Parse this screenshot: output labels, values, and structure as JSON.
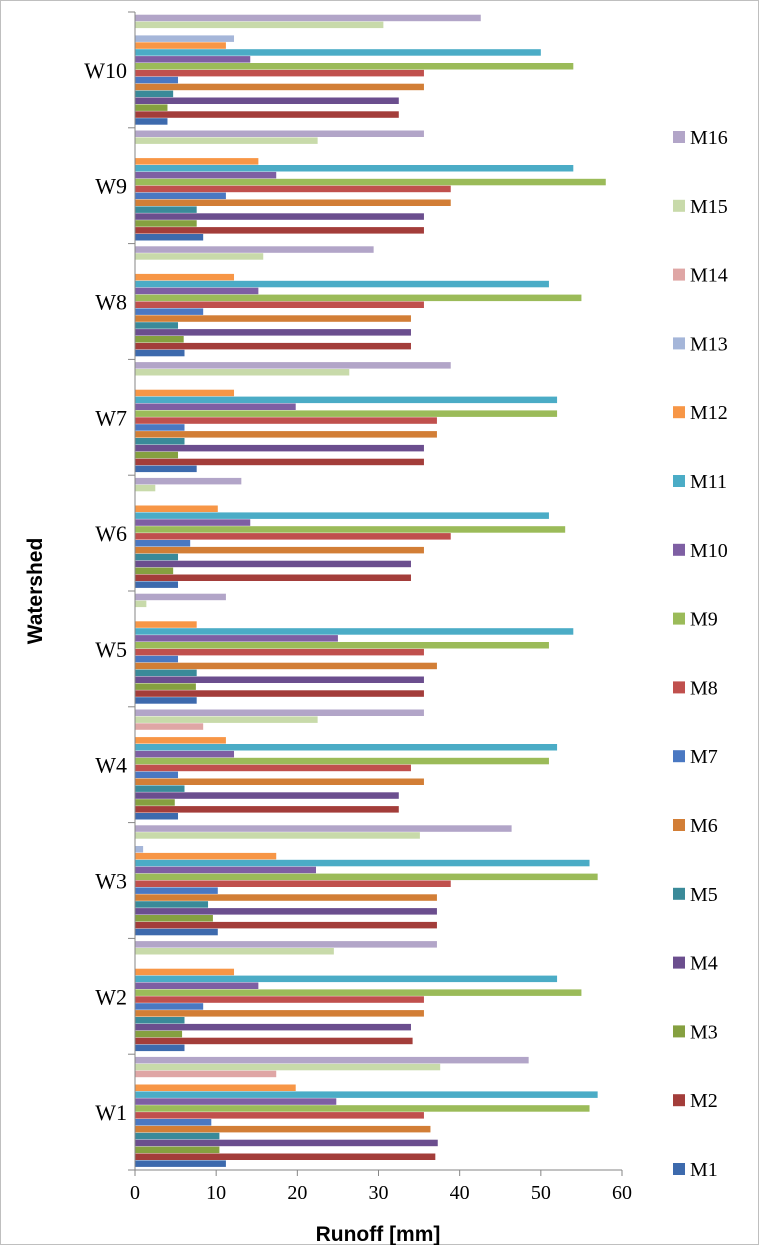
{
  "chart_data": {
    "type": "bar",
    "orientation": "horizontal",
    "categories": [
      "W1",
      "W2",
      "W3",
      "W4",
      "W5",
      "W6",
      "W7",
      "W8",
      "W9",
      "W10"
    ],
    "xlabel": "Runoff [mm]",
    "ylabel": "Watershed",
    "xlim": [
      0,
      60
    ],
    "xticks": [
      "0",
      "10",
      "20",
      "30",
      "40",
      "50",
      "60"
    ],
    "grid": false,
    "legend_position": "right",
    "series": [
      {
        "name": "M1",
        "color": "#3D6AAD",
        "values": [
          11.2,
          6.1,
          10.2,
          5.3,
          7.6,
          5.3,
          7.6,
          6.1,
          8.4,
          4.0
        ]
      },
      {
        "name": "M2",
        "color": "#A33D3A",
        "values": [
          37.0,
          34.2,
          37.2,
          32.5,
          35.6,
          34.0,
          35.6,
          34.0,
          35.6,
          32.5
        ]
      },
      {
        "name": "M3",
        "color": "#85A040",
        "values": [
          10.4,
          5.8,
          9.6,
          4.9,
          7.5,
          4.7,
          5.3,
          6.0,
          7.6,
          4.0
        ]
      },
      {
        "name": "M4",
        "color": "#6B4E8E",
        "values": [
          37.3,
          34.0,
          37.2,
          32.5,
          35.6,
          34.0,
          35.6,
          34.0,
          35.6,
          32.5
        ]
      },
      {
        "name": "M5",
        "color": "#3A8A99",
        "values": [
          10.4,
          6.1,
          9.0,
          6.1,
          7.6,
          5.3,
          6.1,
          5.3,
          7.6,
          4.7
        ]
      },
      {
        "name": "M6",
        "color": "#D27E36",
        "values": [
          36.4,
          35.6,
          37.2,
          35.6,
          37.2,
          35.6,
          37.2,
          34.0,
          38.9,
          35.6
        ]
      },
      {
        "name": "M7",
        "color": "#4A78C2",
        "values": [
          9.4,
          8.4,
          10.2,
          5.3,
          5.3,
          6.8,
          6.1,
          8.4,
          11.2,
          5.3
        ]
      },
      {
        "name": "M8",
        "color": "#C0504D",
        "values": [
          35.6,
          35.6,
          38.9,
          34.0,
          35.6,
          38.9,
          37.2,
          35.6,
          38.9,
          35.6
        ]
      },
      {
        "name": "M9",
        "color": "#9BBB59",
        "values": [
          56.0,
          55.0,
          57.0,
          51.0,
          51.0,
          53.0,
          52.0,
          55.0,
          58.0,
          54.0
        ]
      },
      {
        "name": "M10",
        "color": "#7E5FA3",
        "values": [
          24.8,
          15.2,
          22.3,
          12.2,
          25.0,
          14.2,
          19.8,
          15.2,
          17.4,
          14.2
        ]
      },
      {
        "name": "M11",
        "color": "#4BACC6",
        "values": [
          57.0,
          52.0,
          56.0,
          52.0,
          54.0,
          51.0,
          52.0,
          51.0,
          54.0,
          50.0
        ]
      },
      {
        "name": "M12",
        "color": "#F79646",
        "values": [
          19.8,
          12.2,
          17.4,
          11.2,
          7.6,
          10.2,
          12.2,
          12.2,
          15.2,
          11.2
        ]
      },
      {
        "name": "M13",
        "color": "#A5B6D9",
        "values": [
          0,
          0,
          1.0,
          0,
          0,
          0,
          0,
          0,
          0,
          12.2
        ]
      },
      {
        "name": "M14",
        "color": "#DFA6A5",
        "values": [
          17.4,
          0,
          0,
          8.4,
          0,
          0,
          0,
          0,
          0,
          0
        ]
      },
      {
        "name": "M15",
        "color": "#C8DAAA",
        "values": [
          37.6,
          24.5,
          35.1,
          22.5,
          1.4,
          2.5,
          26.4,
          15.8,
          22.5,
          30.6
        ]
      },
      {
        "name": "M16",
        "color": "#B2A5C8",
        "values": [
          48.5,
          37.2,
          46.4,
          35.6,
          11.2,
          13.1,
          38.9,
          29.4,
          35.6,
          42.6
        ]
      }
    ]
  }
}
